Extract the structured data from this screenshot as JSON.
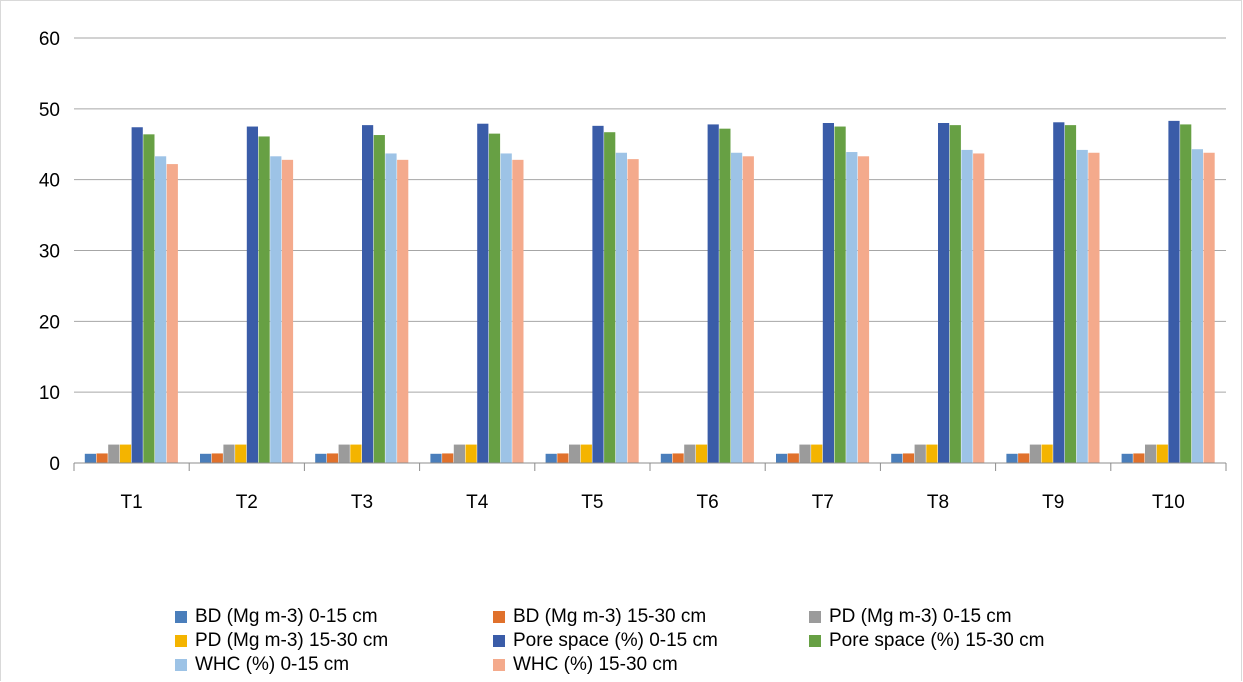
{
  "chart_data": {
    "type": "bar",
    "categories": [
      "T1",
      "T2",
      "T3",
      "T4",
      "T5",
      "T6",
      "T7",
      "T8",
      "T9",
      "T10"
    ],
    "ylim": [
      0,
      60
    ],
    "yticks": [
      "0",
      "10",
      "20",
      "30",
      "40",
      "50",
      "60"
    ],
    "grid": true,
    "legend_position": "bottom",
    "series": [
      {
        "name": "BD (Mg m-3)  0-15 cm",
        "color": "#4a7ebb",
        "values": [
          1.3,
          1.3,
          1.3,
          1.3,
          1.3,
          1.3,
          1.3,
          1.3,
          1.3,
          1.3
        ]
      },
      {
        "name": "BD (Mg m-3)  15-30 cm",
        "color": "#e0712c",
        "values": [
          1.35,
          1.35,
          1.35,
          1.35,
          1.35,
          1.35,
          1.35,
          1.35,
          1.35,
          1.35
        ]
      },
      {
        "name": "PD (Mg m-3)  0-15 cm",
        "color": "#9b9b9b",
        "values": [
          2.6,
          2.6,
          2.6,
          2.6,
          2.6,
          2.6,
          2.6,
          2.6,
          2.6,
          2.6
        ]
      },
      {
        "name": "PD (Mg m-3)  15-30 cm",
        "color": "#f4b400",
        "values": [
          2.6,
          2.6,
          2.6,
          2.6,
          2.6,
          2.6,
          2.6,
          2.6,
          2.6,
          2.6
        ]
      },
      {
        "name": "Pore space (%) 0-15 cm",
        "color": "#3a5ca8",
        "values": [
          47.4,
          47.5,
          47.7,
          47.9,
          47.6,
          47.8,
          48.0,
          48.0,
          48.1,
          48.3
        ]
      },
      {
        "name": "Pore space (%) 15-30 cm",
        "color": "#67a044",
        "values": [
          46.4,
          46.1,
          46.3,
          46.5,
          46.7,
          47.2,
          47.5,
          47.7,
          47.7,
          47.8
        ]
      },
      {
        "name": "WHC (%)  0-15 cm",
        "color": "#9dc3e6",
        "values": [
          43.3,
          43.3,
          43.7,
          43.7,
          43.8,
          43.8,
          43.9,
          44.2,
          44.2,
          44.3
        ]
      },
      {
        "name": "WHC (%)  15-30 cm",
        "color": "#f4aa8c",
        "values": [
          42.2,
          42.8,
          42.8,
          42.8,
          42.9,
          43.3,
          43.3,
          43.7,
          43.8,
          43.8
        ]
      }
    ]
  }
}
